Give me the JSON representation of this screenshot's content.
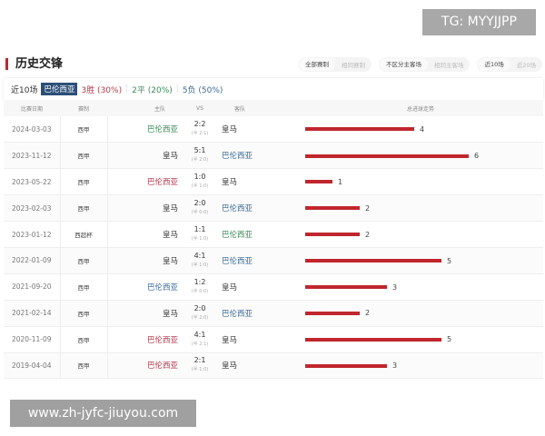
{
  "watermark_top": "TG: MYYJJPP",
  "watermark_bottom": "www.zh-jyfc-jiuyou.com",
  "title": "历史交锋",
  "filters": [
    [
      "全部赛制",
      "相同赛制"
    ],
    [
      "不区分主客场",
      "相同主客场"
    ],
    [
      "近10场",
      "近20场"
    ]
  ],
  "summary": {
    "range": "近10场",
    "team": "巴伦西亚",
    "win": "3胜 (30%)",
    "draw": "2平 (20%)",
    "loss": "5负 (50%)",
    "sep": "|"
  },
  "headers": [
    "比赛日期",
    "赛制",
    "主队",
    "VS",
    "客队",
    "总进球走势"
  ],
  "colors": {
    "win": "#b33a4a",
    "draw": "#3a8a5a",
    "loss": "#3a6b9a",
    "bar": "#c0262d"
  },
  "rows": [
    {
      "date": "2024-03-03",
      "league": "西甲",
      "home": "巴伦西亚",
      "score": "2:2",
      "ht": "(半 2:1)",
      "away": "皇马",
      "total": 4,
      "team_side": "home",
      "result": "draw"
    },
    {
      "date": "2023-11-12",
      "league": "西甲",
      "home": "皇马",
      "score": "5:1",
      "ht": "(半 2:0)",
      "away": "巴伦西亚",
      "total": 6,
      "team_side": "away",
      "result": "loss"
    },
    {
      "date": "2023-05-22",
      "league": "西甲",
      "home": "巴伦西亚",
      "score": "1:0",
      "ht": "(半 1:0)",
      "away": "皇马",
      "total": 1,
      "team_side": "home",
      "result": "win"
    },
    {
      "date": "2023-02-03",
      "league": "西甲",
      "home": "皇马",
      "score": "2:0",
      "ht": "(半 0:0)",
      "away": "巴伦西亚",
      "total": 2,
      "team_side": "away",
      "result": "loss"
    },
    {
      "date": "2023-01-12",
      "league": "西超杯",
      "home": "皇马",
      "score": "1:1",
      "ht": "(半 1:0)",
      "away": "巴伦西亚",
      "total": 2,
      "team_side": "away",
      "result": "draw"
    },
    {
      "date": "2022-01-09",
      "league": "西甲",
      "home": "皇马",
      "score": "4:1",
      "ht": "(半 1:0)",
      "away": "巴伦西亚",
      "total": 5,
      "team_side": "away",
      "result": "loss"
    },
    {
      "date": "2021-09-20",
      "league": "西甲",
      "home": "巴伦西亚",
      "score": "1:2",
      "ht": "(半 0:0)",
      "away": "皇马",
      "total": 3,
      "team_side": "home",
      "result": "loss"
    },
    {
      "date": "2021-02-14",
      "league": "西甲",
      "home": "皇马",
      "score": "2:0",
      "ht": "(半 2:0)",
      "away": "巴伦西亚",
      "total": 2,
      "team_side": "away",
      "result": "loss"
    },
    {
      "date": "2020-11-09",
      "league": "西甲",
      "home": "巴伦西亚",
      "score": "4:1",
      "ht": "(半 2:1)",
      "away": "皇马",
      "total": 5,
      "team_side": "home",
      "result": "win"
    },
    {
      "date": "2019-04-04",
      "league": "西甲",
      "home": "巴伦西亚",
      "score": "2:1",
      "ht": "(半 1:0)",
      "away": "皇马",
      "total": 3,
      "team_side": "home",
      "result": "win"
    }
  ]
}
